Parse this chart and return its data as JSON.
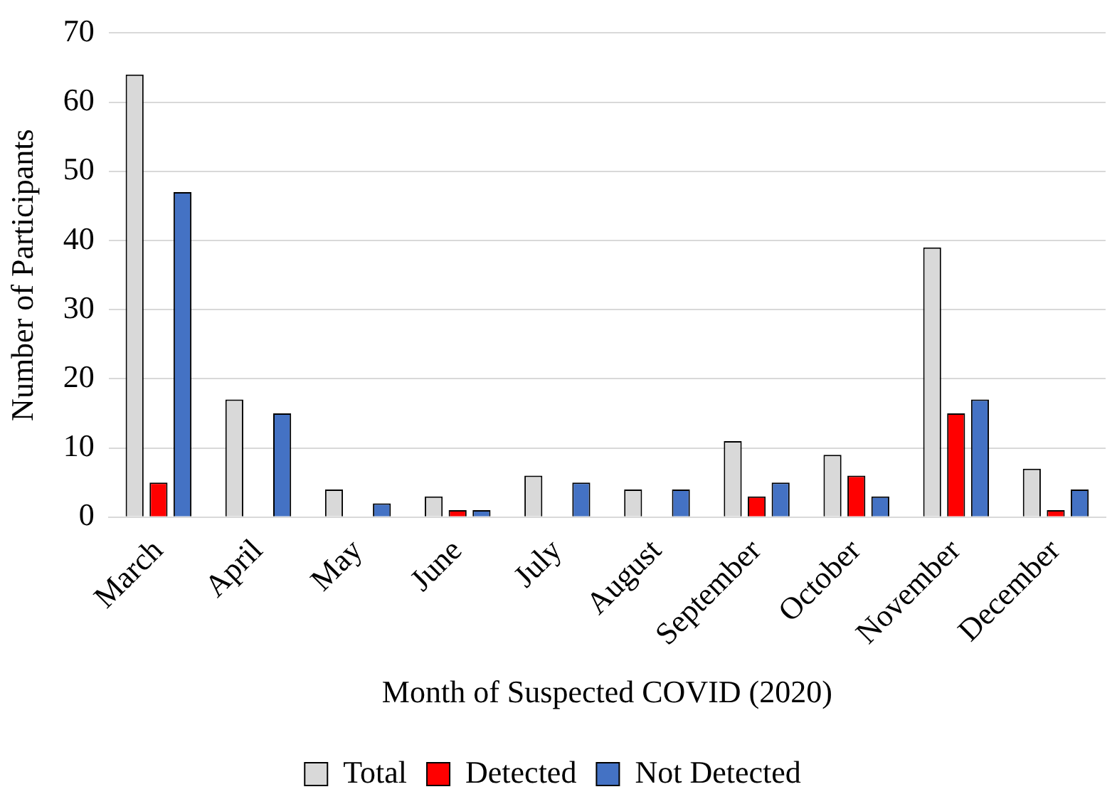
{
  "chart_data": {
    "type": "bar",
    "xlabel": "Month of Suspected COVID (2020)",
    "ylabel": "Number of Participants",
    "categories": [
      "March",
      "April",
      "May",
      "June",
      "July",
      "August",
      "September",
      "October",
      "November",
      "December"
    ],
    "series": [
      {
        "name": "Total",
        "color": "#d9d9d9",
        "values": [
          64,
          17,
          4,
          3,
          6,
          4,
          11,
          9,
          39,
          7
        ]
      },
      {
        "name": "Detected",
        "color": "#ff0000",
        "values": [
          5,
          0,
          0,
          1,
          0,
          0,
          3,
          6,
          15,
          1
        ]
      },
      {
        "name": "Not Detected",
        "color": "#4472c4",
        "values": [
          47,
          15,
          2,
          1,
          5,
          4,
          5,
          3,
          17,
          4
        ]
      }
    ],
    "ylim": [
      0,
      70
    ],
    "yticks": [
      0,
      10,
      20,
      30,
      40,
      50,
      60,
      70
    ],
    "grid": "y",
    "legend": "bottom"
  }
}
